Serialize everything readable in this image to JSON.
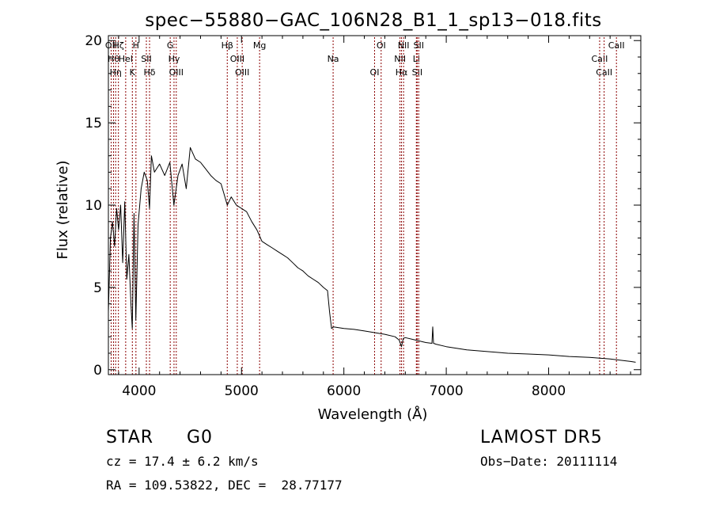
{
  "chart_data": {
    "type": "line",
    "title": "spec−55880−GAC_106N28_B1_1_sp13−018.fits",
    "xlabel": "Wavelength (Å)",
    "ylabel": "Flux (relative)",
    "xlim": [
      3700,
      8900
    ],
    "ylim": [
      -0.3,
      20.3
    ],
    "xticks": [
      4000,
      5000,
      6000,
      7000,
      8000
    ],
    "yticks": [
      0,
      5,
      10,
      15,
      20
    ],
    "grid": false,
    "line_color": "#000000",
    "marker_color": "#8b0000",
    "series": [
      {
        "x": [
          3700,
          3720,
          3740,
          3760,
          3780,
          3800,
          3820,
          3840,
          3860,
          3880,
          3900,
          3920,
          3933,
          3950,
          3968,
          3990,
          4020,
          4050,
          4080,
          4102,
          4120,
          4150,
          4200,
          4250,
          4300,
          4340,
          4380,
          4420,
          4460,
          4500,
          4550,
          4600,
          4650,
          4700,
          4750,
          4800,
          4861,
          4900,
          4950,
          5000,
          5050,
          5100,
          5150,
          5200,
          5250,
          5300,
          5350,
          5400,
          5450,
          5500,
          5550,
          5600,
          5650,
          5700,
          5750,
          5800,
          5840,
          5860,
          5880,
          5900,
          6000,
          6100,
          6200,
          6300,
          6400,
          6500,
          6540,
          6563,
          6580,
          6600,
          6700,
          6800,
          6860,
          6868,
          6876,
          6900,
          7000,
          7200,
          7400,
          7600,
          7800,
          8000,
          8200,
          8400,
          8600,
          8800,
          8850
        ],
        "y": [
          3.5,
          8.0,
          9.0,
          7.5,
          9.8,
          8.5,
          10.0,
          6.5,
          10.2,
          5.5,
          7.0,
          4.0,
          2.5,
          9.5,
          3.0,
          8.8,
          11.0,
          12.0,
          11.5,
          9.8,
          13.0,
          12.0,
          12.5,
          11.8,
          12.6,
          10.0,
          11.8,
          12.5,
          11.0,
          13.5,
          12.8,
          12.6,
          12.2,
          11.8,
          11.5,
          11.3,
          10.0,
          10.5,
          10.0,
          9.8,
          9.6,
          9.0,
          8.5,
          7.8,
          7.6,
          7.4,
          7.2,
          7.0,
          6.8,
          6.5,
          6.2,
          6.0,
          5.7,
          5.5,
          5.3,
          5.0,
          4.8,
          3.5,
          2.5,
          2.6,
          2.5,
          2.45,
          2.35,
          2.25,
          2.15,
          2.0,
          1.8,
          1.4,
          1.9,
          1.95,
          1.8,
          1.65,
          1.6,
          2.6,
          1.6,
          1.55,
          1.4,
          1.2,
          1.1,
          1.0,
          0.95,
          0.9,
          0.8,
          0.75,
          0.65,
          0.5,
          0.45
        ]
      }
    ],
    "line_markers": [
      {
        "x": 3727,
        "label": "OII"
      },
      {
        "x": 3750,
        "label": "Hθ"
      },
      {
        "x": 3771,
        "label": "Hη"
      },
      {
        "x": 3798,
        "label": "Hζ"
      },
      {
        "x": 3869,
        "label": "HeI"
      },
      {
        "x": 3934,
        "label": "K"
      },
      {
        "x": 3969,
        "label": "H"
      },
      {
        "x": 4071,
        "label": "SII"
      },
      {
        "x": 4102,
        "label": "Hδ"
      },
      {
        "x": 4304,
        "label": "G"
      },
      {
        "x": 4341,
        "label": "Hγ"
      },
      {
        "x": 4363,
        "label": "OIII"
      },
      {
        "x": 4861,
        "label": "Hβ"
      },
      {
        "x": 4959,
        "label": "OIII"
      },
      {
        "x": 5007,
        "label": "OIII"
      },
      {
        "x": 5177,
        "label": "Mg"
      },
      {
        "x": 5895,
        "label": "Na"
      },
      {
        "x": 6300,
        "label": "OI"
      },
      {
        "x": 6364,
        "label": "OI"
      },
      {
        "x": 6548,
        "label": "NII"
      },
      {
        "x": 6563,
        "label": "Hα"
      },
      {
        "x": 6583,
        "label": "NII"
      },
      {
        "x": 6708,
        "label": "Li"
      },
      {
        "x": 6716,
        "label": "SII"
      },
      {
        "x": 6731,
        "label": "SII"
      },
      {
        "x": 8498,
        "label": "CaII"
      },
      {
        "x": 8542,
        "label": "CaII"
      },
      {
        "x": 8662,
        "label": "CaII"
      }
    ]
  },
  "info": {
    "class": "STAR",
    "subclass": "G0",
    "redshift": "cz = 17.4 ± 6.2 km/s",
    "coords": "RA = 109.53822, DEC =  28.77177",
    "survey": "LAMOST DR5",
    "obs_date": "Obs−Date: 20111114"
  }
}
